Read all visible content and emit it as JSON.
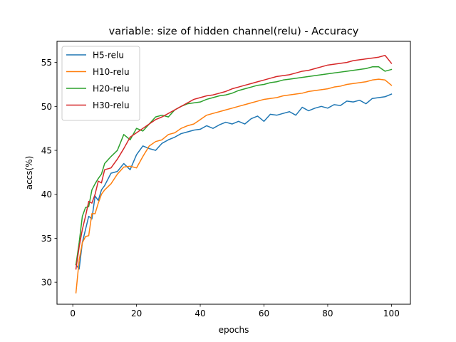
{
  "chart_data": {
    "type": "line",
    "title": "variable: size of hidden channel(relu) - Accuracy",
    "xlabel": "epochs",
    "ylabel": "accs(%)",
    "xlim": [
      -4.95,
      105.95
    ],
    "ylim": [
      27.5,
      57.4
    ],
    "xticks": [
      0,
      20,
      40,
      60,
      80,
      100
    ],
    "yticks": [
      30,
      35,
      40,
      45,
      50,
      55
    ],
    "grid": false,
    "legend_position": "upper-left",
    "series": [
      {
        "name": "H5-relu",
        "color": "#1f77b4",
        "x": [
          1,
          2,
          3,
          4,
          5,
          6,
          7,
          8,
          9,
          10,
          12,
          14,
          16,
          18,
          20,
          22,
          24,
          26,
          28,
          30,
          32,
          34,
          36,
          38,
          40,
          42,
          44,
          46,
          48,
          50,
          52,
          54,
          56,
          58,
          60,
          62,
          64,
          66,
          68,
          70,
          72,
          74,
          76,
          78,
          80,
          82,
          84,
          86,
          88,
          90,
          92,
          94,
          96,
          98,
          100
        ],
        "y": [
          32.0,
          31.5,
          34.5,
          36.0,
          37.5,
          37.2,
          39.8,
          39.3,
          40.5,
          41.0,
          42.4,
          42.6,
          43.5,
          42.8,
          44.5,
          45.5,
          45.2,
          45.0,
          45.8,
          46.2,
          46.5,
          46.9,
          47.1,
          47.3,
          47.4,
          47.8,
          47.5,
          47.9,
          48.2,
          48.0,
          48.3,
          48.0,
          48.6,
          48.9,
          48.3,
          49.1,
          49.0,
          49.2,
          49.4,
          49.0,
          49.9,
          49.5,
          49.8,
          50.0,
          49.8,
          50.2,
          50.1,
          50.6,
          50.5,
          50.7,
          50.3,
          50.9,
          51.0,
          51.1,
          51.4
        ]
      },
      {
        "name": "H10-relu",
        "color": "#ff7f0e",
        "x": [
          1,
          2,
          3,
          4,
          5,
          6,
          7,
          8,
          9,
          10,
          12,
          14,
          16,
          18,
          20,
          22,
          24,
          26,
          28,
          30,
          32,
          34,
          36,
          38,
          40,
          42,
          44,
          46,
          48,
          50,
          52,
          54,
          56,
          58,
          60,
          62,
          64,
          66,
          68,
          70,
          72,
          74,
          76,
          78,
          80,
          82,
          84,
          86,
          88,
          90,
          92,
          94,
          96,
          98,
          100
        ],
        "y": [
          28.8,
          32.5,
          34.5,
          35.2,
          35.3,
          37.8,
          37.8,
          39.0,
          40.0,
          40.5,
          41.2,
          42.3,
          43.1,
          43.2,
          43.0,
          44.3,
          45.5,
          46.0,
          46.2,
          46.8,
          47.0,
          47.5,
          47.8,
          48.0,
          48.5,
          49.0,
          49.2,
          49.4,
          49.6,
          49.8,
          50.0,
          50.2,
          50.4,
          50.6,
          50.8,
          50.9,
          51.0,
          51.2,
          51.3,
          51.4,
          51.5,
          51.7,
          51.8,
          51.9,
          52.0,
          52.2,
          52.3,
          52.5,
          52.6,
          52.7,
          52.8,
          53.0,
          53.1,
          53.0,
          52.4
        ]
      },
      {
        "name": "H20-relu",
        "color": "#2ca02c",
        "x": [
          1,
          2,
          3,
          4,
          5,
          6,
          7,
          8,
          9,
          10,
          12,
          14,
          16,
          18,
          20,
          22,
          24,
          26,
          28,
          30,
          32,
          34,
          36,
          38,
          40,
          42,
          44,
          46,
          48,
          50,
          52,
          54,
          56,
          58,
          60,
          62,
          64,
          66,
          68,
          70,
          72,
          74,
          76,
          78,
          80,
          82,
          84,
          86,
          88,
          90,
          92,
          94,
          96,
          98,
          100
        ],
        "y": [
          32.0,
          34.5,
          37.5,
          38.5,
          38.6,
          40.5,
          41.2,
          41.8,
          42.3,
          43.5,
          44.3,
          45.0,
          46.8,
          46.2,
          47.5,
          47.2,
          48.0,
          48.8,
          49.0,
          48.8,
          49.6,
          50.0,
          50.3,
          50.4,
          50.5,
          50.8,
          51.0,
          51.2,
          51.3,
          51.5,
          51.8,
          52.0,
          52.2,
          52.4,
          52.5,
          52.7,
          52.8,
          53.0,
          53.1,
          53.2,
          53.3,
          53.4,
          53.5,
          53.6,
          53.7,
          53.8,
          53.9,
          54.0,
          54.1,
          54.2,
          54.3,
          54.5,
          54.5,
          54.0,
          54.2
        ]
      },
      {
        "name": "H30-relu",
        "color": "#d62728",
        "x": [
          1,
          2,
          3,
          4,
          5,
          6,
          7,
          8,
          9,
          10,
          12,
          14,
          16,
          18,
          20,
          22,
          24,
          26,
          28,
          30,
          32,
          34,
          36,
          38,
          40,
          42,
          44,
          46,
          48,
          50,
          52,
          54,
          56,
          58,
          60,
          62,
          64,
          66,
          68,
          70,
          72,
          74,
          76,
          78,
          80,
          82,
          84,
          86,
          88,
          90,
          92,
          94,
          96,
          98,
          100
        ],
        "y": [
          31.5,
          34.0,
          36.0,
          37.5,
          39.2,
          39.0,
          40.0,
          41.5,
          41.3,
          42.8,
          43.0,
          44.0,
          45.2,
          46.5,
          47.0,
          47.5,
          48.0,
          48.5,
          48.8,
          49.2,
          49.6,
          50.0,
          50.4,
          50.8,
          51.0,
          51.2,
          51.3,
          51.5,
          51.7,
          52.0,
          52.2,
          52.4,
          52.6,
          52.8,
          53.0,
          53.2,
          53.4,
          53.5,
          53.6,
          53.8,
          54.0,
          54.1,
          54.3,
          54.5,
          54.7,
          54.8,
          54.9,
          55.0,
          55.2,
          55.3,
          55.4,
          55.5,
          55.6,
          55.8,
          54.9
        ]
      }
    ]
  }
}
